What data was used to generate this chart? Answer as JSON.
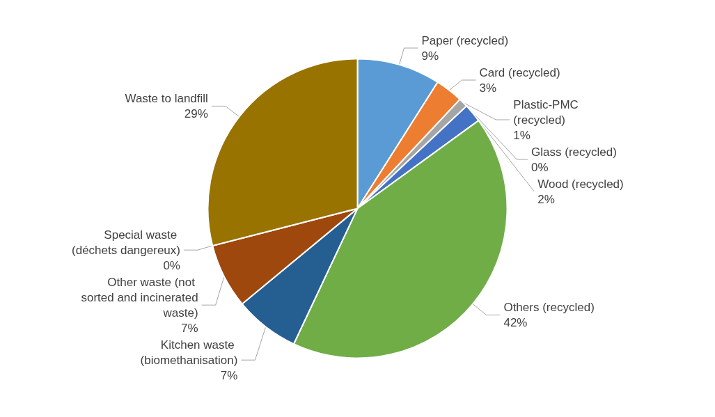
{
  "chart_data": {
    "type": "pie",
    "categories": [
      "Paper (recycled)",
      "Card (recycled)",
      "Plastic-PMC (recycled)",
      "Glass (recycled)",
      "Wood (recycled)",
      "Others (recycled)",
      "Kitchen waste (biomethanisation)",
      "Other waste (not sorted and incinerated waste)",
      "Special waste (déchets dangereux)",
      "Waste to landfill"
    ],
    "values": [
      9,
      3,
      1,
      0,
      2,
      42,
      7,
      7,
      0,
      29
    ],
    "value_labels": [
      "9%",
      "3%",
      "1%",
      "0%",
      "2%",
      "42%",
      "7%",
      "7%",
      "0%",
      "29%"
    ],
    "colors": [
      "#5b9bd5",
      "#ed7d31",
      "#a5a5a5",
      "#ffc000",
      "#4472c4",
      "#70ad47",
      "#255e91",
      "#9e480e",
      "#636363",
      "#997300"
    ]
  }
}
